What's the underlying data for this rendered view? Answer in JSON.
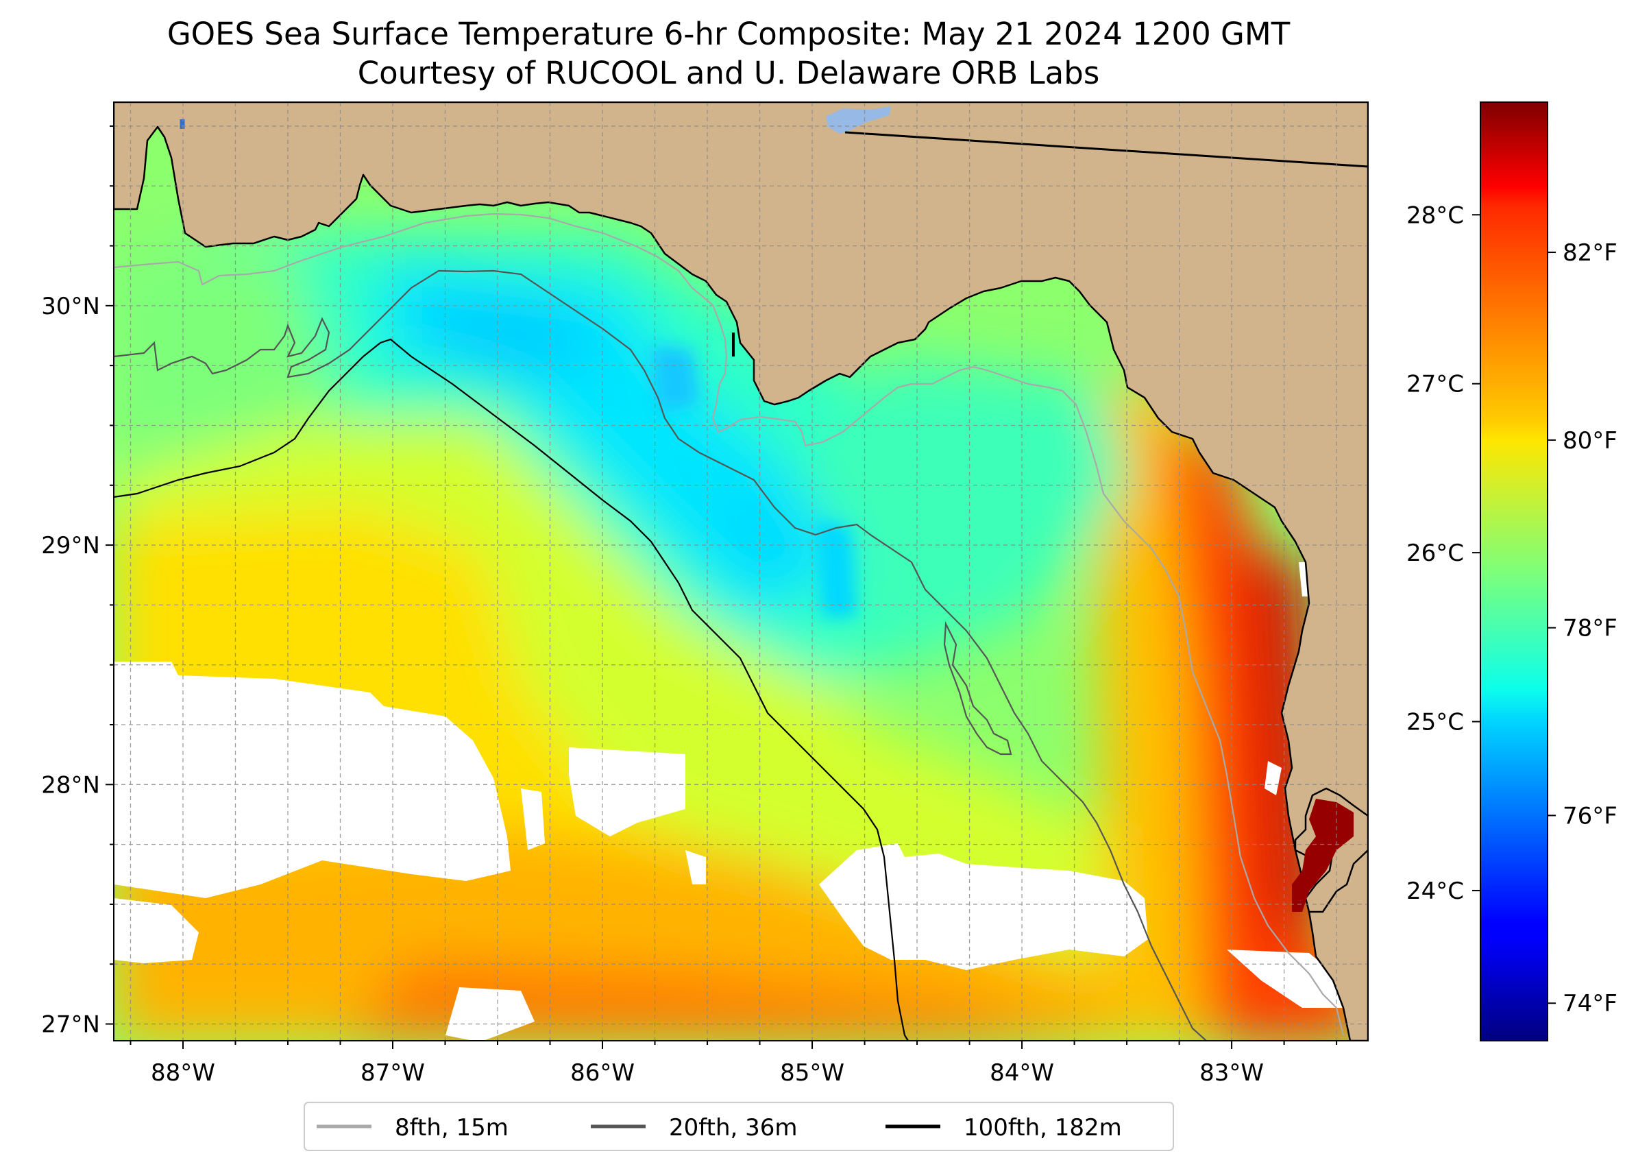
{
  "title": "GOES Sea Surface Temperature 6-hr Composite: May 21 2024 1200 GMT",
  "subtitle": "Courtesy of RUCOOL and U. Delaware ORB Labs",
  "map": {
    "lon_range": [
      -88.33,
      -82.35
    ],
    "lat_range": [
      26.93,
      30.85
    ],
    "lon_ticks": [
      {
        "value": -88,
        "label": "88°W"
      },
      {
        "value": -87,
        "label": "87°W"
      },
      {
        "value": -86,
        "label": "86°W"
      },
      {
        "value": -85,
        "label": "85°W"
      },
      {
        "value": -84,
        "label": "84°W"
      },
      {
        "value": -83,
        "label": "83°W"
      }
    ],
    "lat_ticks": [
      {
        "value": 27,
        "label": "27°N"
      },
      {
        "value": 28,
        "label": "28°N"
      },
      {
        "value": 29,
        "label": "29°N"
      },
      {
        "value": 30,
        "label": "30°N"
      }
    ],
    "land_color": "#d2b48c",
    "no_data_color": "#ffffff",
    "gridlines": true
  },
  "colorbar": {
    "colormap": "jet",
    "range_f": [
      73.6,
      83.6
    ],
    "f_ticks": [
      {
        "value": 74,
        "label": "74°F"
      },
      {
        "value": 76,
        "label": "76°F"
      },
      {
        "value": 78,
        "label": "78°F"
      },
      {
        "value": 80,
        "label": "80°F"
      },
      {
        "value": 82,
        "label": "82°F"
      }
    ],
    "c_ticks": [
      {
        "value": 24,
        "label": "24°C"
      },
      {
        "value": 25,
        "label": "25°C"
      },
      {
        "value": 26,
        "label": "26°C"
      },
      {
        "value": 27,
        "label": "27°C"
      },
      {
        "value": 28,
        "label": "28°C"
      }
    ]
  },
  "legend": {
    "items": [
      {
        "label": "8fth, 15m",
        "color": "#a9a9a9"
      },
      {
        "label": "20fth, 36m",
        "color": "#555555"
      },
      {
        "label": "100fth, 182m",
        "color": "#000000"
      }
    ]
  }
}
